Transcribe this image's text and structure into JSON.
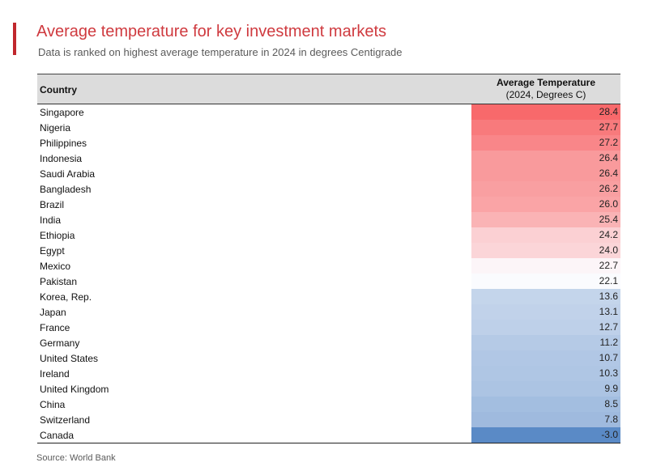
{
  "header": {
    "title": "Average temperature for key investment markets",
    "subtitle": "Data is ranked on highest average temperature in 2024 in degrees Centigrade"
  },
  "colors": {
    "accent": "#c0272d",
    "title": "#cf3a3f",
    "hot": "#f8696b",
    "neutral": "#fcfcff",
    "cold": "#5a8ac6"
  },
  "source": "Source: World Bank",
  "chart_data": {
    "type": "table",
    "columns": [
      "Country",
      "Average Temperature",
      "(2024, Degrees C)"
    ],
    "rows": [
      {
        "country": "Singapore",
        "value": "28.4"
      },
      {
        "country": "Nigeria",
        "value": "27.7"
      },
      {
        "country": "Philippines",
        "value": "27.2"
      },
      {
        "country": "Indonesia",
        "value": "26.4"
      },
      {
        "country": "Saudi Arabia",
        "value": "26.4"
      },
      {
        "country": "Bangladesh",
        "value": "26.2"
      },
      {
        "country": "Brazil",
        "value": "26.0"
      },
      {
        "country": "India",
        "value": "25.4"
      },
      {
        "country": "Ethiopia",
        "value": "24.2"
      },
      {
        "country": "Egypt",
        "value": "24.0"
      },
      {
        "country": "Mexico",
        "value": "22.7"
      },
      {
        "country": "Pakistan",
        "value": "22.1"
      },
      {
        "country": "Korea, Rep.",
        "value": "13.6"
      },
      {
        "country": "Japan",
        "value": "13.1"
      },
      {
        "country": "France",
        "value": "12.7"
      },
      {
        "country": "Germany",
        "value": "11.2"
      },
      {
        "country": "United States",
        "value": "10.7"
      },
      {
        "country": "Ireland",
        "value": "10.3"
      },
      {
        "country": "United Kingdom",
        "value": "9.9"
      },
      {
        "country": "China",
        "value": "8.5"
      },
      {
        "country": "Switzerland",
        "value": "7.8"
      },
      {
        "country": "Canada",
        "value": "-3.0"
      }
    ]
  }
}
